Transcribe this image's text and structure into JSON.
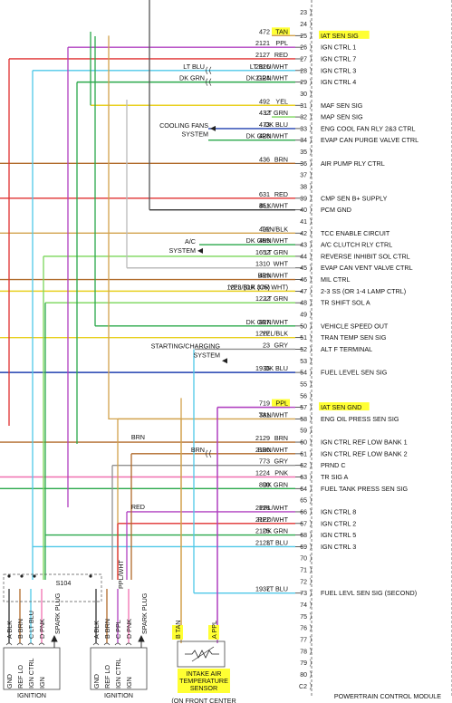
{
  "module_title": "POWERTRAIN CONTROL MODULE",
  "pins": [
    {
      "n": "23",
      "label": "",
      "circuit": "",
      "color": "",
      "wire": ""
    },
    {
      "n": "24",
      "label": "",
      "circuit": "",
      "color": "",
      "wire": ""
    },
    {
      "n": "25",
      "label": "IAT SEN SIG",
      "circuit": "472",
      "color": "TAN",
      "wire": "#d2a24c",
      "hl": true
    },
    {
      "n": "26",
      "label": "IGN CTRL 1",
      "circuit": "2121",
      "color": "PPL",
      "wire": "#b040c0"
    },
    {
      "n": "27",
      "label": "IGN CTRL 7",
      "circuit": "2127",
      "color": "RED",
      "wire": "#e03030"
    },
    {
      "n": "28",
      "label": "IGN CTRL 3",
      "circuit": "2126",
      "color": "LT BLU/WHT",
      "wire": "#4fc8e8",
      "split": "LT BLU"
    },
    {
      "n": "29",
      "label": "IGN CTRL 4",
      "circuit": "2124",
      "color": "DK GRN/WHT",
      "wire": "#2aa84a",
      "split": "DK GRN"
    },
    {
      "n": "30",
      "label": "",
      "circuit": "",
      "color": "",
      "wire": ""
    },
    {
      "n": "31",
      "label": "MAF SEN SIG",
      "circuit": "492",
      "color": "YEL",
      "wire": "#e8d020"
    },
    {
      "n": "32",
      "label": "MAP SEN SIG",
      "circuit": "432",
      "color": "LT GRN",
      "wire": "#7ad65a"
    },
    {
      "n": "33",
      "label": "ENG COOL FAN RLY 2&3 CTRL",
      "circuit": "473",
      "color": "DK BLU",
      "wire": "#2040b0"
    },
    {
      "n": "34",
      "label": "EVAP CAN PURGE VALVE CTRL",
      "circuit": "428",
      "color": "DK GRN/WHT",
      "wire": "#2aa84a"
    },
    {
      "n": "35",
      "label": "",
      "circuit": "",
      "color": "",
      "wire": ""
    },
    {
      "n": "36",
      "label": "AIR PUMP RLY CTRL",
      "circuit": "436",
      "color": "BRN",
      "wire": "#b06a2a"
    },
    {
      "n": "37",
      "label": "",
      "circuit": "",
      "color": "",
      "wire": ""
    },
    {
      "n": "38",
      "label": "",
      "circuit": "",
      "color": "",
      "wire": ""
    },
    {
      "n": "39",
      "label": "CMP SEN B+ SUPPLY",
      "circuit": "631",
      "color": "RED",
      "wire": "#e03030"
    },
    {
      "n": "40",
      "label": "PCM GND",
      "circuit": "451",
      "color": "BLK/WHT",
      "wire": "#333333"
    },
    {
      "n": "41",
      "label": "",
      "circuit": "",
      "color": "",
      "wire": ""
    },
    {
      "n": "42",
      "label": "TCC ENABLE CIRCUIT",
      "circuit": "422",
      "color": "TAN/BLK",
      "wire": "#d2a24c"
    },
    {
      "n": "43",
      "label": "A/C CLUTCH RLY CTRL",
      "circuit": "459",
      "color": "DK GRN/WHT",
      "wire": "#2aa84a"
    },
    {
      "n": "44",
      "label": "REVERSE INHIBIT SOL CTRL",
      "circuit": "1652",
      "color": "LT GRN",
      "wire": "#7ad65a"
    },
    {
      "n": "45",
      "label": "EVAP CAN VENT VALVE CTRL",
      "circuit": "1310",
      "color": "WHT",
      "wire": "#bbbbbb"
    },
    {
      "n": "46",
      "label": "MIL CTRL",
      "circuit": "419",
      "color": "BRN/WHT",
      "wire": "#b06a2a"
    },
    {
      "n": "47",
      "label": "2-3 SS (OR 1-4 LAMP CTRL)",
      "circuit": "1223 (OR 375)",
      "color": "YEL/BLK (OR WHT)",
      "wire": "#e8d020"
    },
    {
      "n": "48",
      "label": "TR SHIFT SOL A",
      "circuit": "1222",
      "color": "LT GRN",
      "wire": "#7ad65a"
    },
    {
      "n": "49",
      "label": "",
      "circuit": "",
      "color": "",
      "wire": ""
    },
    {
      "n": "50",
      "label": "VEHICLE SPEED OUT",
      "circuit": "817",
      "color": "DK GRN/WHT",
      "wire": "#2aa84a"
    },
    {
      "n": "51",
      "label": "TRAN TEMP SEN SIG",
      "circuit": "1227",
      "color": "YEL/BLK",
      "wire": "#e8d020"
    },
    {
      "n": "52",
      "label": "ALT F TERMINAL",
      "circuit": "23",
      "color": "GRY",
      "wire": "#909090"
    },
    {
      "n": "53",
      "label": "",
      "circuit": "",
      "color": "",
      "wire": ""
    },
    {
      "n": "54",
      "label": "FUEL LEVEL SEN SIG",
      "circuit": "1936",
      "color": "DK BLU",
      "wire": "#2040b0"
    },
    {
      "n": "55",
      "label": "",
      "circuit": "",
      "color": "",
      "wire": ""
    },
    {
      "n": "56",
      "label": "",
      "circuit": "",
      "color": "",
      "wire": ""
    },
    {
      "n": "57",
      "label": "IAT SEN GND",
      "circuit": "719",
      "color": "PPL",
      "wire": "#b040c0",
      "hl": true
    },
    {
      "n": "58",
      "label": "ENG OIL PRESS SEN SIG",
      "circuit": "331",
      "color": "TAN/WHT",
      "wire": "#d2a24c"
    },
    {
      "n": "59",
      "label": "",
      "circuit": "",
      "color": "",
      "wire": ""
    },
    {
      "n": "60",
      "label": "IGN CTRL REF LOW BANK 1",
      "circuit": "2129",
      "color": "BRN",
      "wire": "#b06a2a"
    },
    {
      "n": "61",
      "label": "IGN CTRL REF LOW BANK 2",
      "circuit": "2130",
      "color": "BRN/WHT",
      "wire": "#b06a2a",
      "split": "BRN"
    },
    {
      "n": "62",
      "label": "PRND C",
      "circuit": "773",
      "color": "GRY",
      "wire": "#909090"
    },
    {
      "n": "63",
      "label": "TR SIG A",
      "circuit": "1224",
      "color": "PNK",
      "wire": "#f070b0"
    },
    {
      "n": "64",
      "label": "FUEL TANK PRESS SEN SIG",
      "circuit": "890",
      "color": "DK GRN",
      "wire": "#2aa84a"
    },
    {
      "n": "65",
      "label": "",
      "circuit": "",
      "color": "",
      "wire": ""
    },
    {
      "n": "66",
      "label": "IGN CTRL 8",
      "circuit": "2128",
      "color": "PPL/WHT",
      "wire": "#b040c0"
    },
    {
      "n": "67",
      "label": "IGN CTRL 2",
      "circuit": "2122",
      "color": "RED/WHT",
      "wire": "#e03030"
    },
    {
      "n": "68",
      "label": "IGN CTRL 5",
      "circuit": "2125",
      "color": "DK GRN",
      "wire": "#2aa84a"
    },
    {
      "n": "69",
      "label": "IGN CTRL 3",
      "circuit": "2123",
      "color": "LT BLU",
      "wire": "#4fc8e8"
    },
    {
      "n": "70",
      "label": "",
      "circuit": "",
      "color": "",
      "wire": ""
    },
    {
      "n": "71",
      "label": "",
      "circuit": "",
      "color": "",
      "wire": ""
    },
    {
      "n": "72",
      "label": "",
      "circuit": "",
      "color": "",
      "wire": ""
    },
    {
      "n": "73",
      "label": "FUEL LEVL SEN SIG (SECOND)",
      "circuit": "1937",
      "color": "LT BLU",
      "wire": "#4fc8e8"
    },
    {
      "n": "74",
      "label": "",
      "circuit": "",
      "color": "",
      "wire": ""
    },
    {
      "n": "75",
      "label": "",
      "circuit": "",
      "color": "",
      "wire": ""
    },
    {
      "n": "76",
      "label": "",
      "circuit": "",
      "color": "",
      "wire": ""
    },
    {
      "n": "77",
      "label": "",
      "circuit": "",
      "color": "",
      "wire": ""
    },
    {
      "n": "78",
      "label": "",
      "circuit": "",
      "color": "",
      "wire": ""
    },
    {
      "n": "79",
      "label": "",
      "circuit": "",
      "color": "",
      "wire": ""
    },
    {
      "n": "80",
      "label": "",
      "circuit": "",
      "color": "",
      "wire": ""
    },
    {
      "n": "C2",
      "label": "",
      "circuit": "",
      "color": "",
      "wire": ""
    }
  ],
  "side_labels": {
    "cooling_fans": [
      "COOLING FANS",
      "SYSTEM"
    ],
    "ac_system": [
      "A/C",
      "SYSTEM"
    ],
    "charging": [
      "STARTING/CHARGING",
      "SYSTEM"
    ]
  },
  "left_wire_labels": {
    "brn": "BRN",
    "red": "RED",
    "ppl_wht": "PPL/WHT"
  },
  "splice": "S104",
  "coil1": {
    "pins": [
      "A BLK",
      "B BRN",
      "C LT BLU",
      "D PNK"
    ],
    "terms": [
      "GND",
      "REF LO",
      "IGN CTRL",
      "IGN"
    ],
    "spark": "SPARK PLUG",
    "title": "IGNITION"
  },
  "coil2": {
    "pins": [
      "A BLK",
      "B BRN",
      "C PPL",
      "D PNK"
    ],
    "terms": [
      "GND",
      "REF LO",
      "IGN CTRL",
      "IGN"
    ],
    "spark": "SPARK PLUG",
    "title": "IGNITION"
  },
  "iat": {
    "pin_b": "B  TAN",
    "pin_a": "A  PPL",
    "lines": [
      "INTAKE AIR",
      "TEMPERATURE",
      "SENSOR"
    ],
    "below": "(ON FRONT CENTER"
  },
  "colors": {
    "highlight": "#ffff33",
    "outline": "#444444"
  }
}
